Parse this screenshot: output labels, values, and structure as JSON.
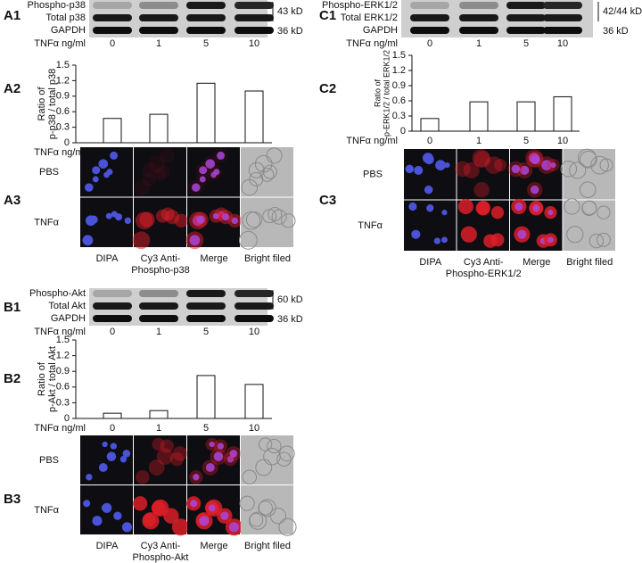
{
  "panel_labels": [
    "A1",
    "A2",
    "A3",
    "B1",
    "B2",
    "B3",
    "C1",
    "C2",
    "C3"
  ],
  "blots": [
    {
      "bands": [
        "Phospho-p38",
        "Total p38",
        "GAPDH"
      ],
      "sizes": [
        "43 kD",
        "36 kD"
      ],
      "dose_label": "TNFα ng/ml",
      "doses": [
        "0",
        "1",
        "5",
        "10"
      ]
    },
    {
      "bands": [
        "Phospho-Akt",
        "Total Akt",
        "GAPDH"
      ],
      "sizes": [
        "60 kD",
        "36 kD"
      ],
      "dose_label": "TNFα ng/ml",
      "doses": [
        "0",
        "1",
        "5",
        "10"
      ]
    },
    {
      "bands": [
        "Phospho-ERK1/2",
        "Total ERK1/2",
        "GAPDH"
      ],
      "sizes": [
        "42/44 kD",
        "36 kD"
      ],
      "dose_label": "TNFα ng/ml",
      "doses": [
        "0",
        "1",
        "5",
        "10"
      ]
    }
  ],
  "chart_data": [
    {
      "type": "bar",
      "ylabel": [
        "Ratio of",
        "p-p38 / total p38"
      ],
      "xlabel": "TNFα ng/ml",
      "categories": [
        "0",
        "1",
        "5",
        "10"
      ],
      "values": [
        0.47,
        0.55,
        1.15,
        1.0
      ],
      "color": "#ffffff",
      "ylim": [
        0,
        1.5
      ],
      "yticks": [
        0,
        0.3,
        0.6,
        0.9,
        1.2,
        1.5
      ]
    },
    {
      "type": "bar",
      "ylabel": [
        "Ratio of",
        "p-Akt / total Akt"
      ],
      "xlabel": "TNFα ng/ml",
      "categories": [
        "0",
        "1",
        "5",
        "10"
      ],
      "values": [
        0.1,
        0.15,
        0.82,
        0.65
      ],
      "color": "#ffffff",
      "ylim": [
        0,
        1.5
      ],
      "yticks": [
        0,
        0.3,
        0.6,
        0.9,
        1.2,
        1.5
      ]
    },
    {
      "type": "bar",
      "ylabel": [
        "Ratio of",
        "p-ERK1/2 / total ERK1/2"
      ],
      "xlabel": "TNFα ng/ml",
      "categories": [
        "0",
        "1",
        "5",
        "10"
      ],
      "values": [
        0.25,
        0.58,
        0.58,
        0.68
      ],
      "color": "#ffffff",
      "ylim": [
        0,
        1.5
      ],
      "yticks": [
        0,
        0.3,
        0.6,
        0.9,
        1.2,
        1.5
      ]
    }
  ],
  "images": [
    {
      "rows": [
        "PBS",
        "TNFα"
      ],
      "columns": [
        [
          "DIPA"
        ],
        [
          "Cy3 Anti-",
          "Phospho-p38"
        ],
        [
          "Merge"
        ],
        [
          "Bright filed"
        ]
      ]
    },
    {
      "rows": [
        "PBS",
        "TNFα"
      ],
      "columns": [
        [
          "DIPA"
        ],
        [
          "Cy3 Anti-",
          "Phospho-Akt"
        ],
        [
          "Merge"
        ],
        [
          "Bright filed"
        ]
      ]
    },
    {
      "rows": [
        "PBS",
        "TNFα"
      ],
      "columns": [
        [
          "DIPA"
        ],
        [
          "Cy3 Anti-",
          "Phospho-ERK1/2"
        ],
        [
          "Merge"
        ],
        [
          "Bright filed"
        ]
      ]
    }
  ]
}
